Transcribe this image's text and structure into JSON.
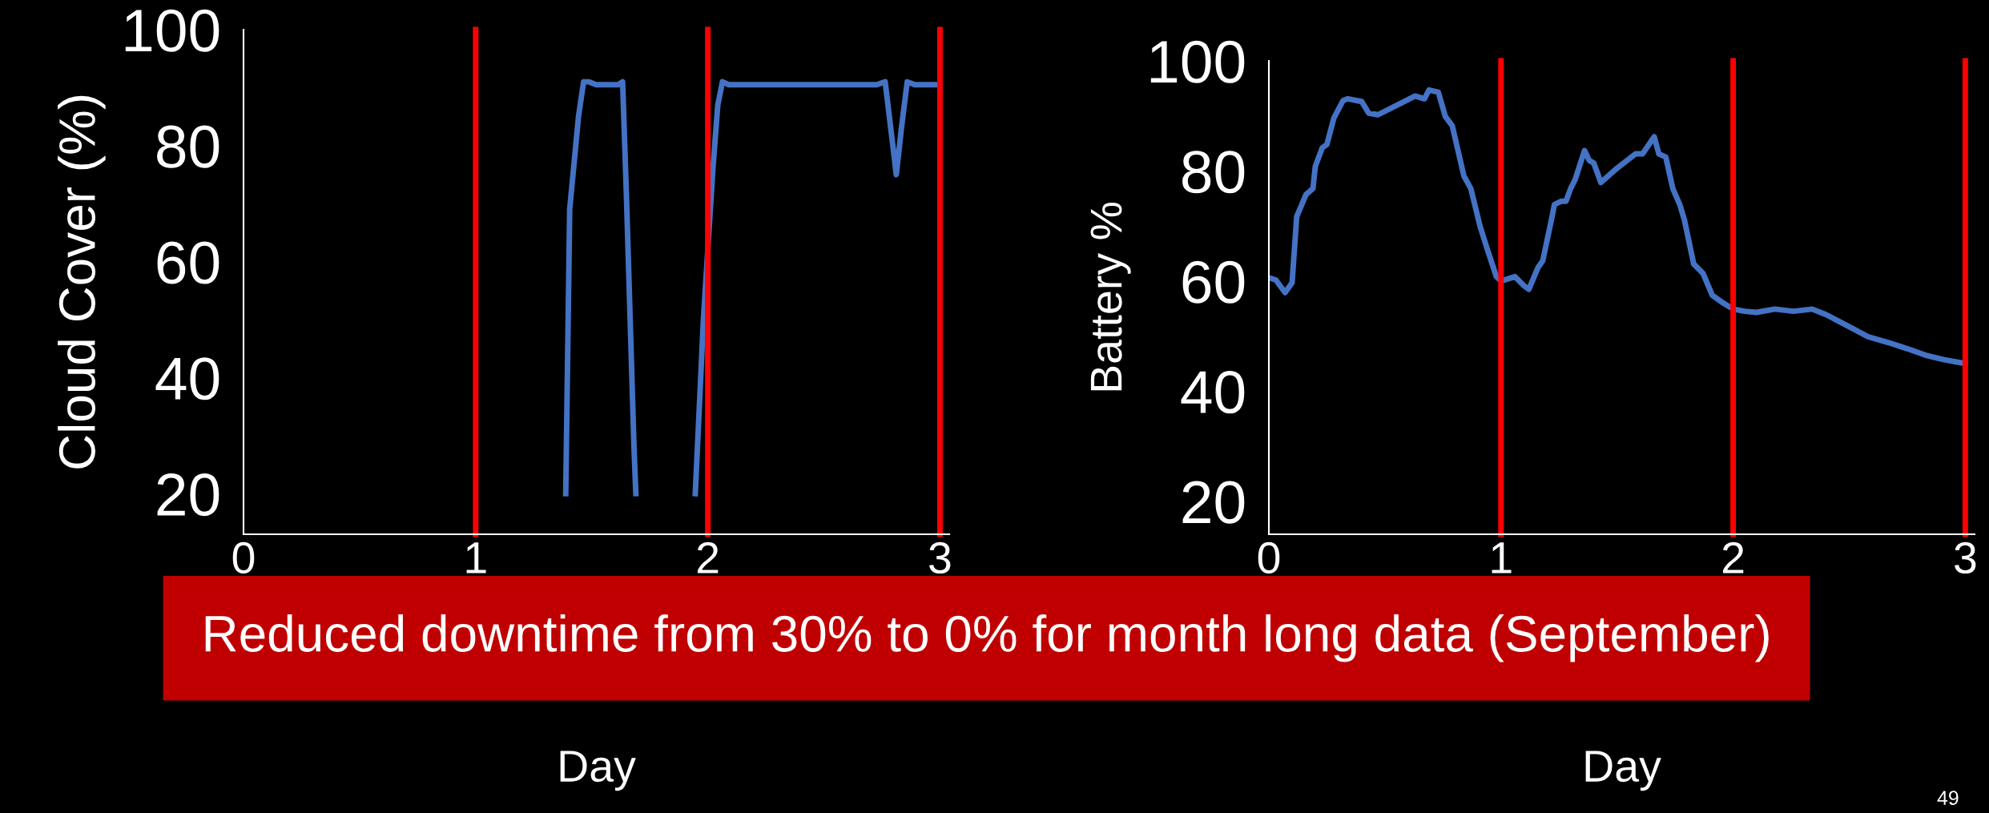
{
  "chart_data": [
    {
      "type": "line",
      "xlabel": "Day",
      "ylabel": "Cloud Cover (%)",
      "xlim": [
        0,
        3.04
      ],
      "xticks": [
        0,
        1,
        2,
        3
      ],
      "ylim": [
        13,
        100
      ],
      "yticks": [
        20,
        40,
        60,
        80,
        100
      ],
      "grid": false,
      "legend": false,
      "marker": "none",
      "line_style": "solid",
      "series": [
        {
          "color": "#4472c4",
          "x": [
            1.388,
            1.405,
            1.424,
            1.443,
            1.465,
            1.486,
            1.519,
            1.614,
            1.633,
            1.649,
            1.682,
            1.69,
            1.8,
            1.946,
            1.981,
            2.022,
            2.043,
            2.063,
            2.09,
            2.728,
            2.764,
            2.788,
            2.812,
            2.834,
            2.859,
            2.891,
            2.986
          ],
          "values": [
            20,
            69,
            77,
            85,
            91,
            91,
            90.5,
            90.5,
            91,
            72,
            28,
            20,
            null,
            20,
            50,
            76,
            87,
            91,
            90.5,
            90.5,
            91,
            83,
            75,
            83,
            91,
            90.5,
            90.5
          ]
        }
      ],
      "ref_lines": [
        {
          "axis": "x",
          "value": 1,
          "color": "#ff0000"
        },
        {
          "axis": "x",
          "value": 2,
          "color": "#ff0000"
        },
        {
          "axis": "x",
          "value": 3,
          "color": "#ff0000"
        }
      ],
      "annotations": [
        "Reduced downtime from 30% to 0% for month long data (September)"
      ]
    },
    {
      "type": "line",
      "xlabel": "Day",
      "ylabel": "Battery %",
      "xlim": [
        0,
        3.04
      ],
      "xticks": [
        0,
        1,
        2,
        3
      ],
      "ylim": [
        14,
        100
      ],
      "yticks": [
        20,
        40,
        60,
        80,
        100
      ],
      "grid": false,
      "legend": false,
      "marker": "none",
      "line_style": "solid",
      "series": [
        {
          "color": "#4472c4",
          "x": [
            0,
            0.03,
            0.07,
            0.1,
            0.12,
            0.16,
            0.19,
            0.2,
            0.23,
            0.25,
            0.28,
            0.32,
            0.34,
            0.4,
            0.43,
            0.47,
            0.55,
            0.63,
            0.67,
            0.69,
            0.73,
            0.76,
            0.79,
            0.84,
            0.87,
            0.91,
            0.94,
            0.98,
            1.0,
            1.06,
            1.1,
            1.12,
            1.16,
            1.18,
            1.22,
            1.23,
            1.26,
            1.28,
            1.3,
            1.32,
            1.36,
            1.38,
            1.4,
            1.43,
            1.5,
            1.58,
            1.61,
            1.66,
            1.68,
            1.71,
            1.74,
            1.77,
            1.79,
            1.83,
            1.87,
            1.91,
            1.95,
            2.0,
            2.05,
            2.1,
            2.18,
            2.26,
            2.34,
            2.4,
            2.45,
            2.5,
            2.58,
            2.67,
            2.75,
            2.83,
            2.91,
            3.0
          ],
          "values": [
            60.6,
            60.2,
            57.9,
            59.7,
            71.7,
            75.7,
            76.8,
            80.8,
            84.2,
            84.8,
            89.6,
            92.8,
            93.1,
            92.6,
            90.5,
            90.2,
            91.9,
            93.6,
            93.1,
            94.7,
            94.3,
            89.9,
            88.2,
            79.1,
            76.8,
            69.9,
            65.9,
            60.8,
            60,
            60.8,
            59.1,
            58.5,
            62.5,
            63.7,
            71.7,
            73.9,
            74.5,
            74.5,
            76.8,
            78.5,
            83.7,
            81.9,
            81.4,
            77.9,
            80.5,
            83.1,
            83.1,
            86.2,
            83.1,
            82.5,
            76.8,
            73.9,
            71.1,
            63.1,
            61.4,
            57.4,
            56.2,
            54.9,
            54.5,
            54.3,
            54.9,
            54.5,
            54.9,
            53.9,
            52.8,
            51.7,
            49.9,
            48.8,
            47.7,
            46.5,
            45.7,
            45
          ]
        }
      ],
      "ref_lines": [
        {
          "axis": "x",
          "value": 1,
          "color": "#ff0000"
        },
        {
          "axis": "x",
          "value": 2,
          "color": "#ff0000"
        },
        {
          "axis": "x",
          "value": 3,
          "color": "#ff0000"
        }
      ],
      "annotations": [
        "49"
      ]
    }
  ]
}
